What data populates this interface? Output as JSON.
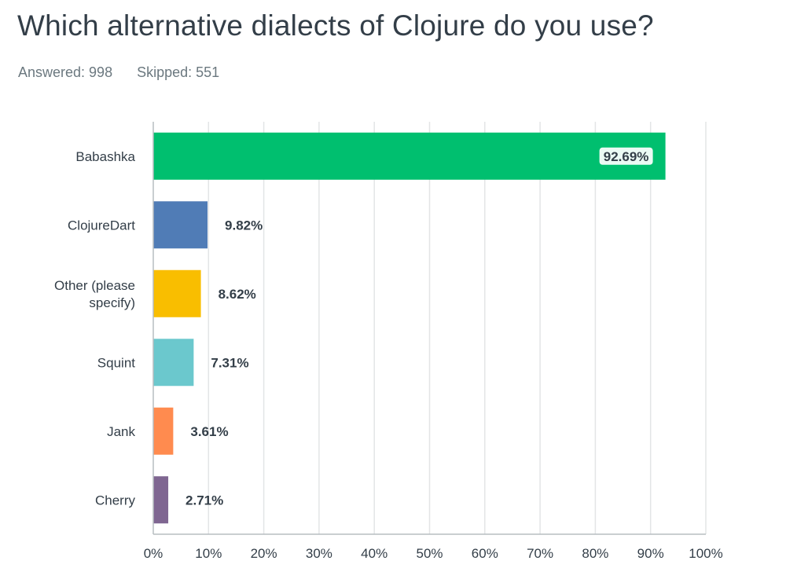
{
  "question": {
    "title": "Which alternative dialects of Clojure do you use?",
    "answered_label": "Answered: 998",
    "skipped_label": "Skipped: 551"
  },
  "chart_data": {
    "type": "bar",
    "orientation": "horizontal",
    "categories": [
      "Babashka",
      "ClojureDart",
      "Other (please specify)",
      "Squint",
      "Jank",
      "Cherry"
    ],
    "category_lines": [
      [
        "Babashka"
      ],
      [
        "ClojureDart"
      ],
      [
        "Other (please",
        "specify)"
      ],
      [
        "Squint"
      ],
      [
        "Jank"
      ],
      [
        "Cherry"
      ]
    ],
    "values": [
      92.69,
      9.82,
      8.62,
      7.31,
      3.61,
      2.71
    ],
    "value_labels": [
      "92.69%",
      "9.82%",
      "8.62%",
      "7.31%",
      "3.61%",
      "2.71%"
    ],
    "colors": [
      "#00bf6f",
      "#507cb6",
      "#f9be00",
      "#6bc8cd",
      "#ff8b4f",
      "#7f6691"
    ],
    "xlim": [
      0,
      100
    ],
    "ticks": [
      "0%",
      "10%",
      "20%",
      "30%",
      "40%",
      "50%",
      "60%",
      "70%",
      "80%",
      "90%",
      "100%"
    ],
    "grid": true,
    "title": "Which alternative dialects of Clojure do you use?",
    "xlabel": "",
    "ylabel": ""
  }
}
